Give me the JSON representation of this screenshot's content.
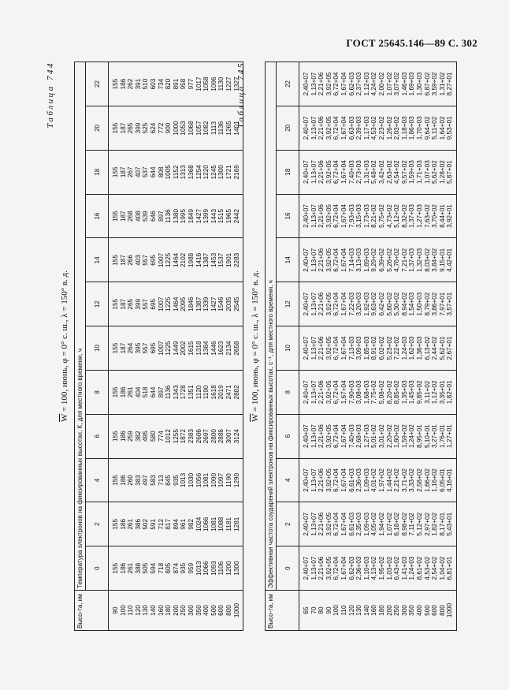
{
  "page_header": "ГОСТ 25645.146—89  С. 302",
  "tables": [
    {
      "label": "Таблица 744",
      "caption": "W = 100, июнь, φ = 0° с. ш., λ = 150° в. д.",
      "caption_w": "W",
      "caption_rest": " = 100, июнь, φ = 0° с. ш., λ = 150° в. д.",
      "super_header": "Температура электронов на фиксированных высотах, К, для местного времени, ч",
      "height_header": "Высо-та, км",
      "hours": [
        "0",
        "2",
        "4",
        "6",
        "8",
        "10",
        "12",
        "14",
        "16",
        "18",
        "20",
        "22"
      ],
      "heights": [
        "90",
        "100",
        "110",
        "120",
        "130",
        "140",
        "160",
        "180",
        "200",
        "250",
        "300",
        "350",
        "400",
        "500",
        "600",
        "800",
        "1000"
      ],
      "columns": [
        [
          "155",
          "186",
          "261",
          "388",
          "505",
          "594",
          "718",
          "805",
          "874",
          "935",
          "959",
          "1013",
          "1066",
          "1093",
          "1106",
          "1200",
          "1300"
        ],
        [
          "155",
          "186",
          "261",
          "386",
          "502",
          "591",
          "712",
          "817",
          "894",
          "961",
          "982",
          "1024",
          "1066",
          "1081",
          "1088",
          "1181",
          "1281"
        ],
        [
          "155",
          "186",
          "260",
          "383",
          "497",
          "583",
          "713",
          "845",
          "935",
          "1013",
          "1030",
          "1056",
          "1081",
          "1090",
          "1097",
          "1190",
          "1290"
        ],
        [
          "155",
          "186",
          "259",
          "382",
          "495",
          "580",
          "774",
          "1012",
          "1255",
          "1872",
          "2383",
          "2606",
          "2697",
          "2800",
          "2886",
          "3007",
          "3124"
        ],
        [
          "155",
          "186",
          "261",
          "404",
          "518",
          "644",
          "897",
          "1136",
          "1343",
          "1728",
          "1351",
          "1120",
          "1190",
          "1618",
          "2019",
          "2471",
          "2802"
        ],
        [
          "155",
          "187",
          "264",
          "395",
          "557",
          "695",
          "1007",
          "1225",
          "1449",
          "2002",
          "1615",
          "1318",
          "1384",
          "1446",
          "1623",
          "2134",
          "2658"
        ],
        [
          "155",
          "187",
          "265",
          "399",
          "557",
          "695",
          "1007",
          "1225",
          "1464",
          "2095",
          "1846",
          "1387",
          "1339",
          "1427",
          "1546",
          "2035",
          "2545"
        ],
        [
          "155",
          "187",
          "266",
          "403",
          "557",
          "695",
          "1007",
          "1225",
          "1464",
          "2102",
          "1988",
          "1416",
          "1387",
          "1453",
          "1537",
          "1901",
          "2283"
        ],
        [
          "155",
          "187",
          "268",
          "408",
          "539",
          "646",
          "897",
          "1136",
          "1380",
          "1995",
          "1849",
          "1427",
          "1399",
          "1443",
          "1515",
          "1965",
          "2442"
        ],
        [
          "155",
          "187",
          "267",
          "407",
          "537",
          "644",
          "808",
          "1005",
          "1152",
          "1313",
          "1368",
          "1254",
          "1220",
          "1245",
          "1300",
          "1721",
          "2169"
        ],
        [
          "155",
          "187",
          "265",
          "399",
          "525",
          "624",
          "772",
          "900",
          "1000",
          "1053",
          "1068",
          "1057",
          "1082",
          "1113",
          "1136",
          "1265",
          "1401"
        ],
        [
          "155",
          "186",
          "262",
          "391",
          "510",
          "603",
          "734",
          "820",
          "891",
          "958",
          "977",
          "1017",
          "1058",
          "1096",
          "1130",
          "1227",
          "1327"
        ]
      ]
    },
    {
      "label": "Таблица 745",
      "caption": "W = 100, июнь, φ = 0° с. ш., λ = 150° в. д.",
      "caption_w": "W",
      "caption_rest": " = 100, июнь, φ = 0° с. ш., λ = 150° в. д.",
      "super_header": "Эффективная частота соударений электронов на фиксированных высотах, с⁻¹, для местного времени, ч",
      "height_header": "Высо-та, км",
      "hours": [
        "0",
        "2",
        "4",
        "6",
        "8",
        "10",
        "12",
        "14",
        "16",
        "18",
        "20",
        "22"
      ],
      "heights": [
        "65",
        "70",
        "80",
        "90",
        "100",
        "110",
        "120",
        "130",
        "140",
        "160",
        "180",
        "200",
        "250",
        "300",
        "350",
        "400",
        "500",
        "600",
        "800",
        "1000"
      ],
      "columns": [
        [
          "2,40+07",
          "1,13+07",
          "2,21+06",
          "3,92+05",
          "6,72+04",
          "1,67+04",
          "6,62+03",
          "2,36+03",
          "1,10+03",
          "4,13+02",
          "1,95+02",
          "1,03+02",
          "6,43+02",
          "1,41+03",
          "1,24+03",
          "8,61+02",
          "4,53+02",
          "2,54+02",
          "1,04+02",
          "6,81+01"
        ],
        [
          "2,40+07",
          "1,13+07",
          "2,21+06",
          "3,92+05",
          "6,72+04",
          "1,67+04",
          "6,61+03",
          "2,35+03",
          "1,09+03",
          "4,05+02",
          "1,94+02",
          "1,07+02",
          "6,18+02",
          "8,98+02",
          "7,11+02",
          "5,12+02",
          "2,97+02",
          "1,82+02",
          "8,17+01",
          "5,43+01"
        ],
        [
          "2,40+07",
          "1,13+07",
          "2,21+06",
          "3,92+05",
          "6,72+04",
          "1,67+04",
          "6,61+03",
          "2,36+03",
          "1,09+03",
          "4,01+02",
          "1,97+02",
          "1,44+02",
          "2,21+02",
          "3,71+02",
          "3,33+02",
          "2,58+02",
          "1,66+02",
          "1,16+02",
          "6,05+01",
          "4,16+01"
        ],
        [
          "2,40+07",
          "1,13+07",
          "2,21+06",
          "3,92+05",
          "6,72+04",
          "1,67+04",
          "7,40+03",
          "2,68+03",
          "1,27+03",
          "5,01+02",
          "3,01+02",
          "2,20+02",
          "1,80+02",
          "1,59+02",
          "1,24+02",
          "8,95+01",
          "5,10+01",
          "3,27+01",
          "1,76+01",
          "1,27+01"
        ],
        [
          "2,40+07",
          "1,13+07",
          "2,21+06",
          "3,92+05",
          "6,72+04",
          "1,67+04",
          "7,90+03",
          "3,08+03",
          "1,68+03",
          "7,75+02",
          "5,08+02",
          "8,20+02",
          "8,85+02",
          "1,35+03",
          "1,45+03",
          "9,85+02",
          "3,11+02",
          "1,12+02",
          "3,35+01",
          "1,82+01"
        ],
        [
          "2,40+07",
          "1,13+07",
          "2,21+06",
          "3,92+05",
          "6,72+04",
          "1,67+04",
          "7,13+03",
          "3,09+03",
          "1,85+03",
          "8,91+02",
          "6,02+02",
          "5,23+02",
          "7,22+02",
          "1,24+03",
          "1,62+03",
          "1,36+03",
          "6,13+02",
          "2,44+02",
          "5,62+01",
          "2,67+01"
        ],
        [
          "2,40+07",
          "1,13+07",
          "2,21+06",
          "3,92+05",
          "6,72+04",
          "1,67+04",
          "7,22+03",
          "3,20+03",
          "1,92+03",
          "9,63+02",
          "6,42+02",
          "5,60+02",
          "5,30+02",
          "8,94+02",
          "1,54+03",
          "1,50+03",
          "8,79+02",
          "3,86+02",
          "7,97+01",
          "3,57+01"
        ],
        [
          "2,40+07",
          "1,13+07",
          "2,21+06",
          "3,92+05",
          "6,72+04",
          "1,67+04",
          "7,14+03",
          "3,13+03",
          "1,89+03",
          "9,29+02",
          "6,39+02",
          "5,26+02",
          "4,76+02",
          "7,21+02",
          "1,37+03",
          "1,32+03",
          "8,03+02",
          "3,84+02",
          "9,15+01",
          "4,42+01"
        ],
        [
          "2,40+07",
          "1,13+07",
          "2,21+06",
          "3,92+05",
          "6,72+04",
          "1,67+04",
          "7,93+03",
          "3,15+03",
          "1,73+03",
          "8,21+02",
          "5,75+02",
          "4,73+02",
          "5,12+02",
          "8,32+02",
          "1,37+03",
          "1,27+03",
          "7,63+02",
          "3,70+02",
          "8,44+01",
          "3,92+01"
        ],
        [
          "2,40+07",
          "1,13+07",
          "2,21+06",
          "3,92+05",
          "6,72+04",
          "1,67+04",
          "7,40+03",
          "2,73+03",
          "1,31+03",
          "5,48+02",
          "3,42+02",
          "2,63+02",
          "4,54+02",
          "9,57+02",
          "1,59+03",
          "1,71+03",
          "1,07+03",
          "5,62+02",
          "1,28+02",
          "5,87+01"
        ],
        [
          "2,40+07",
          "1,13+07",
          "2,21+06",
          "3,92+05",
          "6,72+04",
          "1,67+04",
          "6,63+03",
          "2,39+03",
          "1,17+03",
          "4,53+02",
          "2,23+02",
          "1,26+02",
          "2,03+02",
          "1,18+03",
          "1,86+03",
          "1,70+03",
          "9,64+02",
          "5,11+02",
          "1,64+02",
          "9,53+01"
        ],
        [
          "2,40+07",
          "1,13+07",
          "2,21+06",
          "3,92+05",
          "6,72+04",
          "1,67+04",
          "6,62+03",
          "2,37+03",
          "1,12+03",
          "4,24+02",
          "2,00+02",
          "1,07+02",
          "3,07+02",
          "1,46+03",
          "1,69+03",
          "1,30+03",
          "6,87+02",
          "3,59+02",
          "1,31+02",
          "8,27+01"
        ]
      ]
    }
  ]
}
